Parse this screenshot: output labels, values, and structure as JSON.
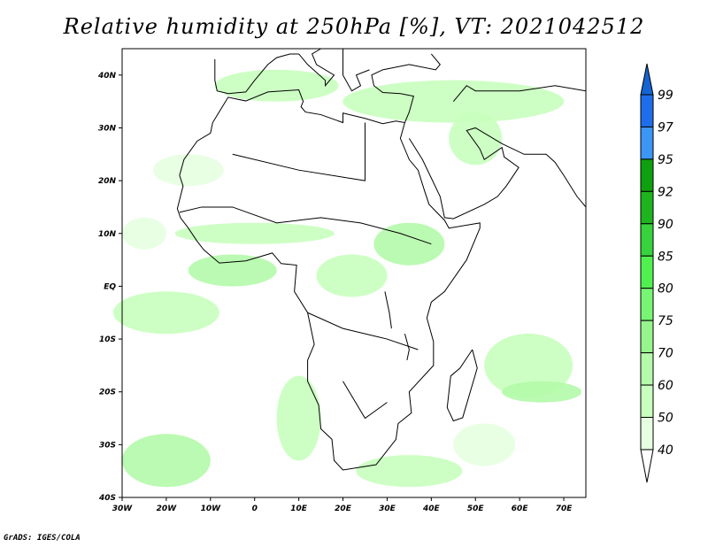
{
  "title": "Relative humidity at 250hPa [%], VT: 2021042512",
  "footer": "GrADS: IGES/COLA",
  "map": {
    "lon_range": [
      -30,
      75
    ],
    "lat_range": [
      -40,
      45
    ],
    "lon_ticks": [
      {
        "v": -30,
        "label": "30W"
      },
      {
        "v": -20,
        "label": "20W"
      },
      {
        "v": -10,
        "label": "10W"
      },
      {
        "v": 0,
        "label": "0"
      },
      {
        "v": 10,
        "label": "10E"
      },
      {
        "v": 20,
        "label": "20E"
      },
      {
        "v": 30,
        "label": "30E"
      },
      {
        "v": 40,
        "label": "40E"
      },
      {
        "v": 50,
        "label": "50E"
      },
      {
        "v": 60,
        "label": "60E"
      },
      {
        "v": 70,
        "label": "70E"
      }
    ],
    "lat_ticks": [
      {
        "v": 40,
        "label": "40N"
      },
      {
        "v": 30,
        "label": "30N"
      },
      {
        "v": 20,
        "label": "20N"
      },
      {
        "v": 10,
        "label": "10N"
      },
      {
        "v": 0,
        "label": "EQ"
      },
      {
        "v": -10,
        "label": "10S"
      },
      {
        "v": -20,
        "label": "20S"
      },
      {
        "v": -30,
        "label": "30S"
      },
      {
        "v": -40,
        "label": "40S"
      }
    ]
  },
  "colorbar": {
    "labels": [
      "99",
      "97",
      "95",
      "92",
      "90",
      "85",
      "80",
      "75",
      "70",
      "60",
      "50",
      "40"
    ],
    "top_arrow_color": "#1464d2",
    "colors": [
      "#1e6eeb",
      "#3c96f5",
      "#0fa00f",
      "#1eb41e",
      "#37d23c",
      "#50f050",
      "#78f573",
      "#96f58c",
      "#b4faaa",
      "#c8ffbe",
      "#e6ffe1"
    ],
    "bottom_arrow_color": "#ffffff"
  }
}
